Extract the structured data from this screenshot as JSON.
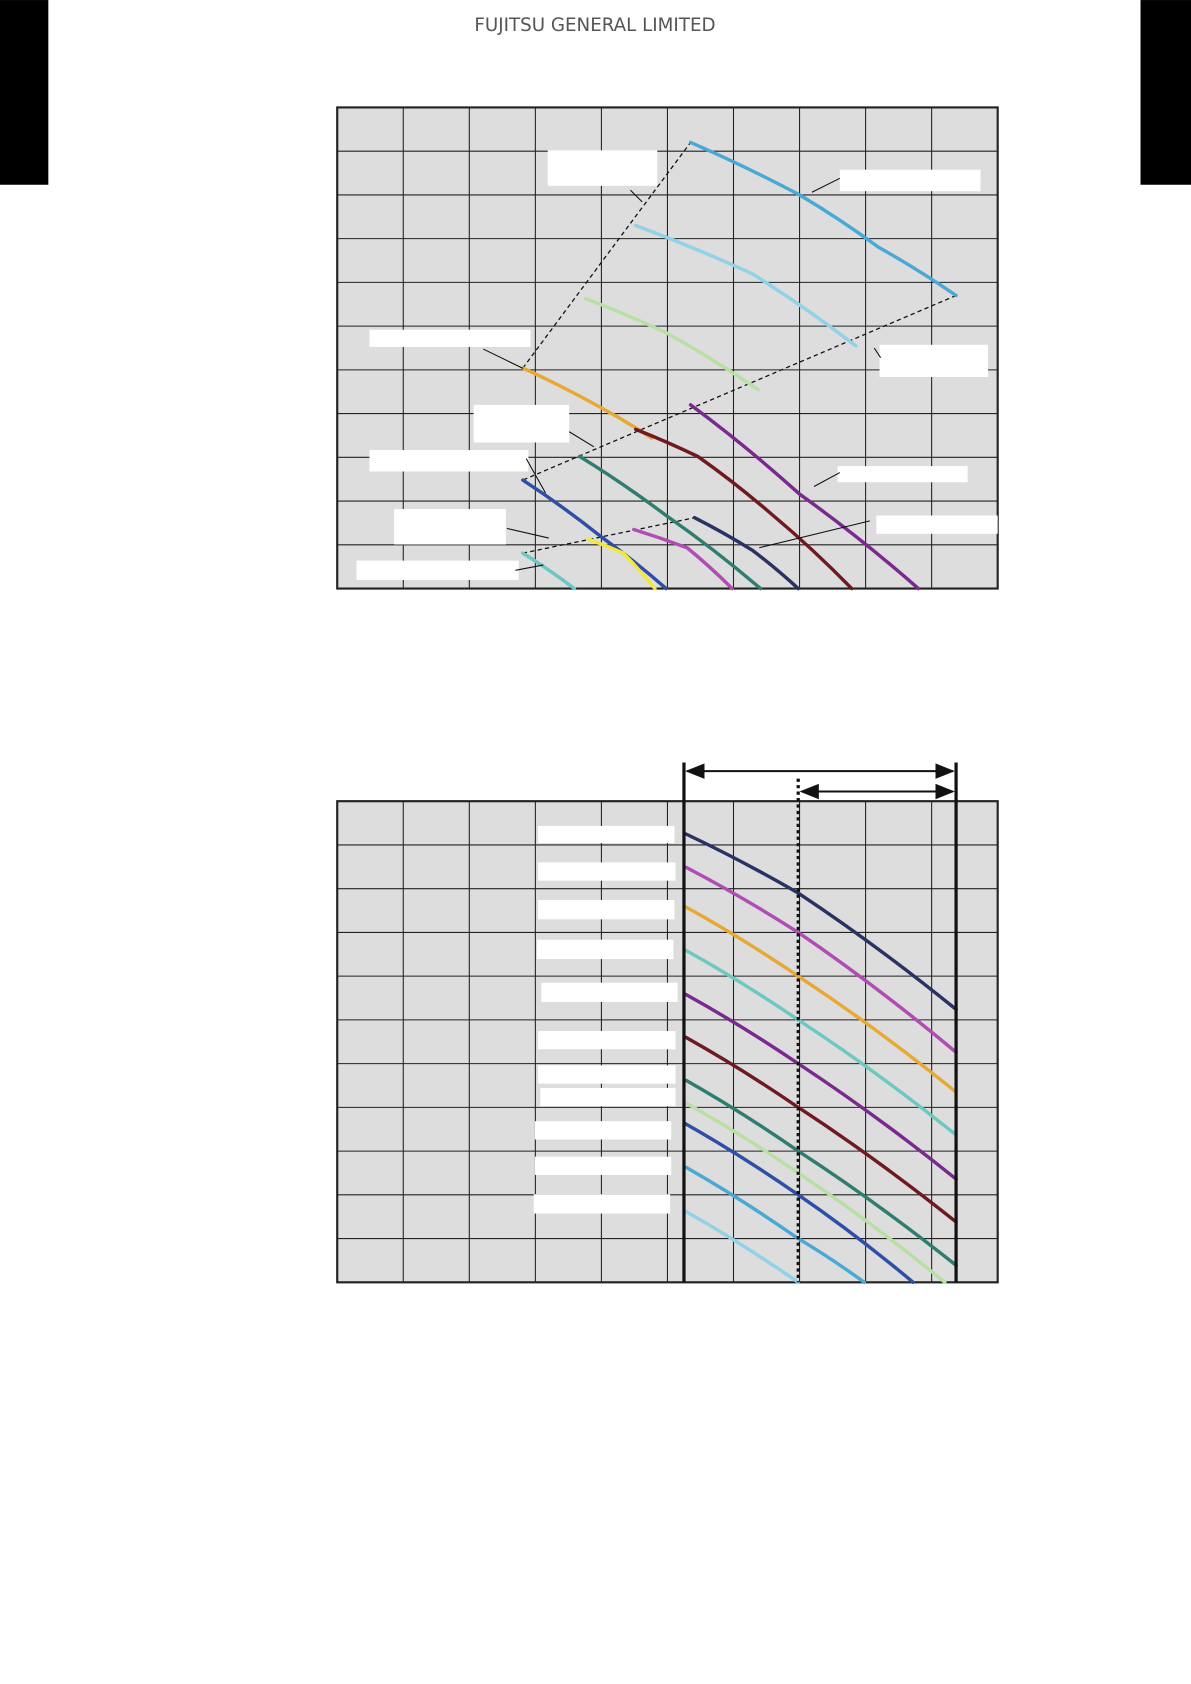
{
  "header": {
    "company": "FUJITSU GENERAL LIMITED"
  },
  "colors": {
    "plot_background": "#dddddd",
    "grid": "#222222",
    "label_box": "#ffffff",
    "corner_tab": "#000000"
  },
  "chart_data": [
    {
      "type": "line",
      "title": "",
      "xlabel": "",
      "ylabel": "",
      "xlim": [
        0,
        10
      ],
      "ylim": [
        0,
        11
      ],
      "grid": true,
      "labels_redacted": true,
      "series": [
        {
          "color": "#4aa8d4",
          "points": [
            [
              5.35,
              10.2
            ],
            [
              7.0,
              9.0
            ],
            [
              8.2,
              7.8
            ],
            [
              9.37,
              6.7
            ]
          ]
        },
        {
          "color": "#92d2e6",
          "points": [
            [
              4.52,
              8.3
            ],
            [
              6.28,
              7.2
            ],
            [
              7.85,
              5.55
            ]
          ]
        },
        {
          "color": "#b6e0a4",
          "points": [
            [
              3.76,
              6.63
            ],
            [
              4.98,
              5.85
            ],
            [
              6.37,
              4.55
            ]
          ]
        },
        {
          "color": "#e8a834",
          "points": [
            [
              2.81,
              5.04
            ],
            [
              4.0,
              4.13
            ],
            [
              4.76,
              3.44
            ]
          ]
        },
        {
          "color": "#6e1a1e",
          "points": [
            [
              4.52,
              3.64
            ],
            [
              5.46,
              3.02
            ],
            [
              6.6,
              1.67
            ],
            [
              7.79,
              0
            ]
          ]
        },
        {
          "color": "#7a2a8e",
          "points": [
            [
              5.35,
              4.2
            ],
            [
              7.0,
              2.16
            ],
            [
              8.8,
              0
            ]
          ]
        },
        {
          "color": "#2e7d6e",
          "points": [
            [
              3.67,
              3.02
            ],
            [
              4.98,
              1.67
            ],
            [
              6.41,
              0
            ]
          ]
        },
        {
          "color": "#2f4ea8",
          "points": [
            [
              2.81,
              2.48
            ],
            [
              4.0,
              1.18
            ],
            [
              4.98,
              0
            ]
          ]
        },
        {
          "color": "#2a3264",
          "points": [
            [
              5.41,
              1.62
            ],
            [
              6.28,
              0.88
            ],
            [
              6.98,
              0
            ]
          ]
        },
        {
          "color": "#b04cb4",
          "points": [
            [
              4.49,
              1.35
            ],
            [
              5.3,
              0.93
            ],
            [
              5.98,
              0
            ]
          ]
        },
        {
          "color": "#f2e83a",
          "points": [
            [
              3.8,
              1.13
            ],
            [
              4.33,
              0.81
            ],
            [
              4.81,
              0
            ]
          ]
        },
        {
          "color": "#6cc8c0",
          "points": [
            [
              2.81,
              0.81
            ],
            [
              3.59,
              0
            ]
          ]
        }
      ],
      "dashed_boundaries": [
        [
          [
            2.81,
            5.04
          ],
          [
            5.35,
            10.2
          ]
        ],
        [
          [
            9.37,
            6.7
          ],
          [
            2.81,
            2.48
          ]
        ],
        [
          [
            2.81,
            0.81
          ],
          [
            5.41,
            1.62
          ]
        ]
      ]
    },
    {
      "type": "line",
      "title": "",
      "xlabel": "",
      "ylabel": "",
      "xlim": [
        0,
        10
      ],
      "ylim": [
        0,
        11
      ],
      "grid": true,
      "labels_redacted": true,
      "reference_lines_x": {
        "solid": [
          5.25,
          9.37
        ],
        "dotted": [
          6.98
        ]
      },
      "range_arrows": [
        [
          5.25,
          9.37
        ],
        [
          6.98,
          9.37
        ]
      ],
      "series": [
        {
          "color": "#2a3264",
          "points": [
            [
              5.28,
              10.25
            ],
            [
              6.98,
              8.9
            ],
            [
              9.37,
              6.24
            ]
          ]
        },
        {
          "color": "#b04cb4",
          "points": [
            [
              5.28,
              9.49
            ],
            [
              6.98,
              8.0
            ],
            [
              9.37,
              5.26
            ]
          ]
        },
        {
          "color": "#e8a834",
          "points": [
            [
              5.28,
              8.58
            ],
            [
              6.98,
              7.0
            ],
            [
              9.37,
              4.35
            ]
          ]
        },
        {
          "color": "#6cc8c0",
          "points": [
            [
              5.28,
              7.59
            ],
            [
              6.98,
              6.0
            ],
            [
              9.37,
              3.37
            ]
          ]
        },
        {
          "color": "#7a2a8e",
          "points": [
            [
              5.28,
              6.58
            ],
            [
              6.98,
              5.0
            ],
            [
              9.37,
              2.36
            ]
          ]
        },
        {
          "color": "#6e1a1e",
          "points": [
            [
              5.28,
              5.6
            ],
            [
              6.98,
              4.0
            ],
            [
              9.37,
              1.38
            ]
          ]
        },
        {
          "color": "#2e7d6e",
          "points": [
            [
              5.28,
              4.62
            ],
            [
              6.98,
              3.0
            ],
            [
              9.37,
              0.39
            ]
          ]
        },
        {
          "color": "#b6e0a4",
          "points": [
            [
              5.28,
              4.1
            ],
            [
              6.98,
              2.5
            ],
            [
              9.2,
              0
            ]
          ]
        },
        {
          "color": "#2f4ea8",
          "points": [
            [
              5.28,
              3.62
            ],
            [
              6.98,
              2.0
            ],
            [
              8.72,
              0
            ]
          ]
        },
        {
          "color": "#4aa8d4",
          "points": [
            [
              5.28,
              2.63
            ],
            [
              6.98,
              1.0
            ],
            [
              7.98,
              0
            ]
          ]
        },
        {
          "color": "#92d2e6",
          "points": [
            [
              5.28,
              1.62
            ],
            [
              6.98,
              0
            ]
          ]
        }
      ]
    }
  ]
}
